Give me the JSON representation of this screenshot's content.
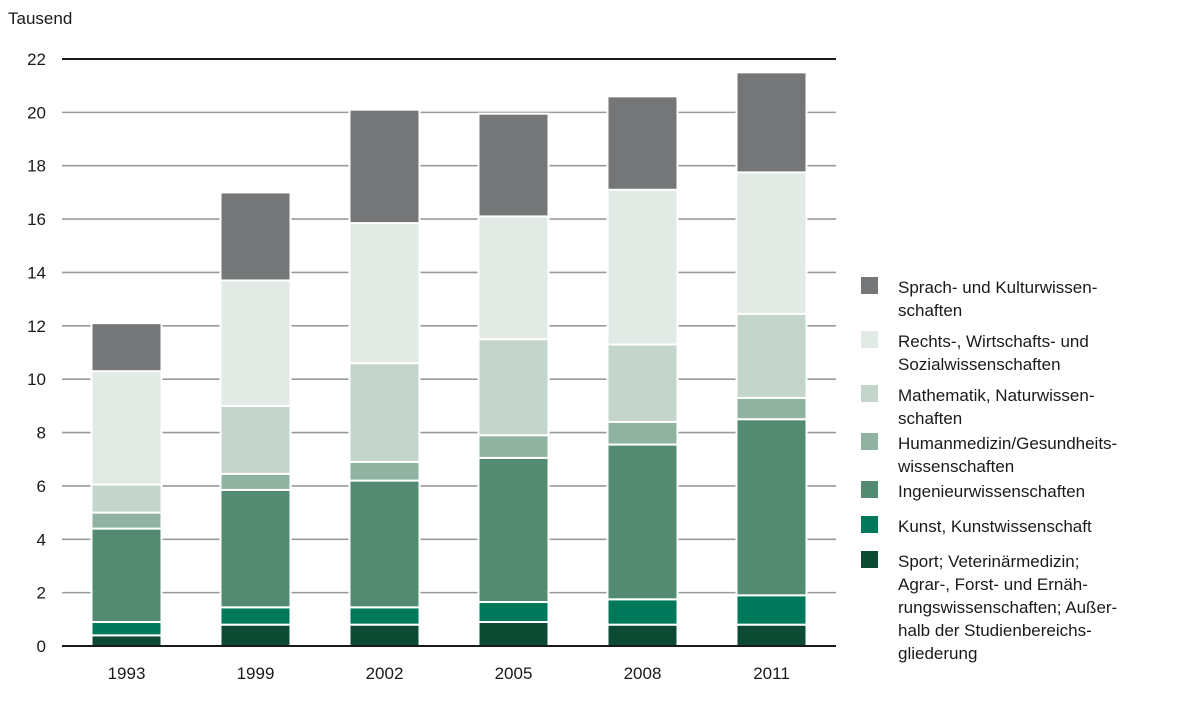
{
  "chart_data": {
    "type": "bar",
    "stacked": true,
    "ylabel": "Tausend",
    "ylim": [
      0,
      22
    ],
    "yticks": [
      0,
      2,
      4,
      6,
      8,
      10,
      12,
      14,
      16,
      18,
      20,
      22
    ],
    "grid": true,
    "legend_position": "right",
    "categories": [
      "1993",
      "1999",
      "2002",
      "2005",
      "2008",
      "2011"
    ],
    "series": [
      {
        "name": "Sport; Veterinärmedizin;\nAgrar-, Forst- und Ernäh-\nrungswissenschaften; Außer-\nhalb der Studienbereichs-\ngliederung",
        "color": "#0c4a34",
        "values": [
          0.4,
          0.8,
          0.8,
          0.9,
          0.8,
          0.8
        ]
      },
      {
        "name": "Kunst, Kunstwissenschaft",
        "color": "#00795a",
        "values": [
          0.5,
          0.65,
          0.65,
          0.75,
          0.95,
          1.1
        ]
      },
      {
        "name": "Ingenieurwissenschaften",
        "color": "#528b72",
        "values": [
          3.5,
          4.4,
          4.75,
          5.4,
          5.8,
          6.6
        ]
      },
      {
        "name": "Humanmedizin/Gesundheits-\nwissenschaften",
        "color": "#8fb3a0",
        "values": [
          0.6,
          0.6,
          0.7,
          0.85,
          0.85,
          0.8
        ]
      },
      {
        "name": "Mathematik, Naturwissen-\nschaften",
        "color": "#c4d6cb",
        "values": [
          1.05,
          2.55,
          3.7,
          3.6,
          2.9,
          3.15
        ]
      },
      {
        "name": "Rechts-, Wirtschafts- und\nSozialwissenschaften",
        "color": "#e1eae4",
        "values": [
          4.25,
          4.7,
          5.25,
          4.6,
          5.8,
          5.3
        ]
      },
      {
        "name": "Sprach- und Kulturwissen-\nschaften",
        "color": "#757677",
        "values": [
          1.8,
          3.3,
          4.25,
          3.85,
          3.5,
          3.75
        ]
      }
    ]
  }
}
